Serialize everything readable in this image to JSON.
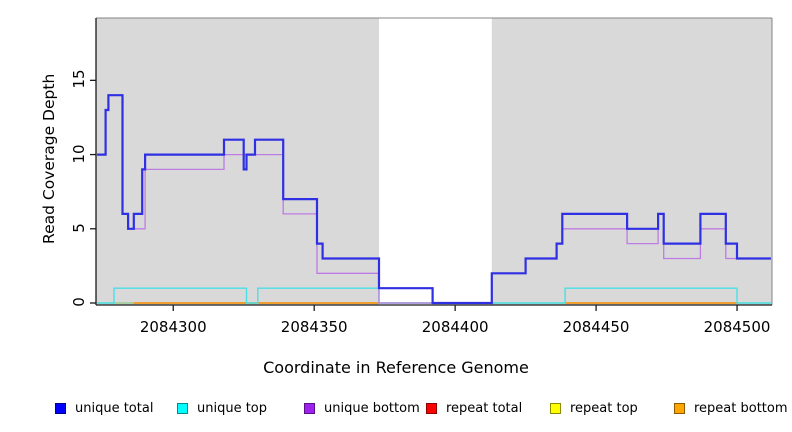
{
  "figure": {
    "panel_bg": "#d9d9d9",
    "highlight_bg": "#ffffff",
    "frame_color_dark": "#1a1a1a",
    "frame_color_light": "#848484"
  },
  "axes": {
    "x_label": "Coordinate in Reference Genome",
    "y_label": "Read Coverage Depth",
    "x_tick_values": [
      2084300,
      2084350,
      2084400,
      2084450,
      2084500
    ],
    "x_tick_labels": [
      "2084300",
      "2084350",
      "2084400",
      "2084450",
      "2084500"
    ],
    "y_tick_values": [
      0,
      5,
      10,
      15
    ],
    "y_tick_labels": [
      "0",
      "5",
      "10",
      "15"
    ]
  },
  "chart_data": {
    "type": "line",
    "step_style": true,
    "xlabel": "Coordinate in Reference Genome",
    "ylabel": "Read Coverage Depth",
    "xlim": [
      2084272.6,
      2084512.4
    ],
    "ylim": [
      0,
      19.2
    ],
    "grid": false,
    "legend_position": "bottom",
    "highlight_region": {
      "from": 2084373,
      "to": 2084413,
      "color": "#ffffff"
    },
    "series": [
      {
        "name": "repeat top",
        "legend_color": "#ffff00",
        "line_color": "#8fcc84",
        "line_width": 1.3,
        "segments": [
          [
            [
              2084273,
              0
            ],
            [
              2084512,
              0
            ]
          ]
        ]
      },
      {
        "name": "repeat bottom",
        "legend_color": "#ffa500",
        "line_color": "#ff8c00",
        "line_width": 1.4,
        "segments": [
          [
            [
              2084286,
              0
            ],
            [
              2084373,
              0
            ]
          ],
          [
            [
              2084439,
              0
            ],
            [
              2084500,
              0
            ]
          ]
        ]
      },
      {
        "name": "repeat total",
        "legend_color": "#ff0000",
        "line_color": "#e0647c",
        "line_width": 1.3,
        "segments": [
          [
            [
              2084373,
              0
            ],
            [
              2084413,
              0
            ]
          ]
        ]
      },
      {
        "name": "unique top",
        "legend_color": "#00ffff",
        "line_color": "#4ae0e6",
        "line_width": 1.4,
        "segments": [
          [
            [
              2084273,
              0
            ],
            [
              2084279,
              1
            ],
            [
              2084326,
              0
            ],
            [
              2084330,
              1
            ],
            [
              2084373,
              0
            ],
            [
              2084439,
              1
            ],
            [
              2084500,
              0
            ],
            [
              2084512,
              0
            ]
          ]
        ]
      },
      {
        "name": "unique bottom",
        "legend_color": "#a020f0",
        "line_color": "#bd7ce4",
        "line_width": 1.3,
        "segments": [
          [
            [
              2084273,
              10
            ],
            [
              2084276,
              13
            ],
            [
              2084277,
              14
            ],
            [
              2084282,
              6
            ],
            [
              2084284,
              5
            ],
            [
              2084290,
              9
            ],
            [
              2084318,
              10
            ],
            [
              2084339,
              6
            ],
            [
              2084351,
              2
            ],
            [
              2084373,
              0
            ],
            [
              2084413,
              2
            ],
            [
              2084425,
              3
            ],
            [
              2084436,
              4
            ],
            [
              2084438,
              5
            ],
            [
              2084461,
              4
            ],
            [
              2084472,
              6
            ],
            [
              2084474,
              3
            ],
            [
              2084487,
              5
            ],
            [
              2084496,
              3
            ],
            [
              2084512,
              3
            ]
          ]
        ]
      },
      {
        "name": "unique total",
        "legend_color": "#0000ff",
        "line_color": "#2f2fe3",
        "line_width": 2.2,
        "segments": [
          [
            [
              2084273,
              10
            ],
            [
              2084276,
              13
            ],
            [
              2084277,
              14
            ],
            [
              2084282,
              6
            ],
            [
              2084284,
              5
            ],
            [
              2084286,
              6
            ],
            [
              2084289,
              9
            ],
            [
              2084290,
              10
            ],
            [
              2084318,
              11
            ],
            [
              2084325,
              9
            ],
            [
              2084326,
              10
            ],
            [
              2084329,
              11
            ],
            [
              2084339,
              7
            ],
            [
              2084351,
              4
            ],
            [
              2084353,
              3
            ],
            [
              2084373,
              1
            ],
            [
              2084392,
              0
            ],
            [
              2084413,
              2
            ],
            [
              2084425,
              3
            ],
            [
              2084436,
              4
            ],
            [
              2084438,
              6
            ],
            [
              2084461,
              5
            ],
            [
              2084472,
              6
            ],
            [
              2084474,
              4
            ],
            [
              2084487,
              6
            ],
            [
              2084496,
              4
            ],
            [
              2084500,
              3
            ],
            [
              2084512,
              3
            ]
          ]
        ]
      }
    ]
  },
  "legend": {
    "items": [
      {
        "label": "unique total",
        "color": "#0000ff"
      },
      {
        "label": "unique top",
        "color": "#00ffff"
      },
      {
        "label": "unique bottom",
        "color": "#a020f0"
      },
      {
        "label": "repeat total",
        "color": "#ff0000"
      },
      {
        "label": "repeat top",
        "color": "#ffff00"
      },
      {
        "label": "repeat bottom",
        "color": "#ffa500"
      }
    ]
  }
}
